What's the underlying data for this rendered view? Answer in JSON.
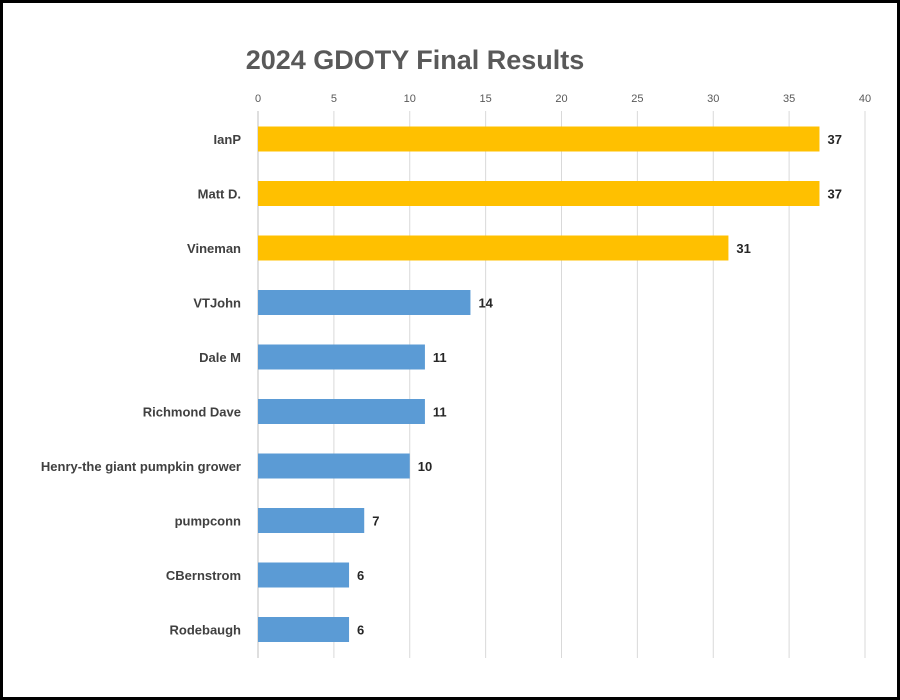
{
  "chart_data": {
    "type": "bar",
    "orientation": "horizontal",
    "title": "2024 GDOTY Final Results",
    "xlabel": "",
    "ylabel": "",
    "xlim": [
      0,
      40
    ],
    "x_ticks": [
      0,
      5,
      10,
      15,
      20,
      25,
      30,
      35,
      40
    ],
    "x_axis_position": "top",
    "grid": true,
    "legend": "none",
    "categories": [
      "IanP",
      "Matt D.",
      "Vineman",
      "VTJohn",
      "Dale M",
      "Richmond Dave",
      "Henry-the giant pumpkin grower",
      "pumpconn",
      "CBernstrom",
      "Rodebaugh"
    ],
    "values": [
      37,
      37,
      31,
      14,
      11,
      11,
      10,
      7,
      6,
      6
    ],
    "bar_colors": [
      "#FFC000",
      "#FFC000",
      "#FFC000",
      "#5B9BD5",
      "#5B9BD5",
      "#5B9BD5",
      "#5B9BD5",
      "#5B9BD5",
      "#5B9BD5",
      "#5B9BD5"
    ],
    "data_labels": true
  }
}
